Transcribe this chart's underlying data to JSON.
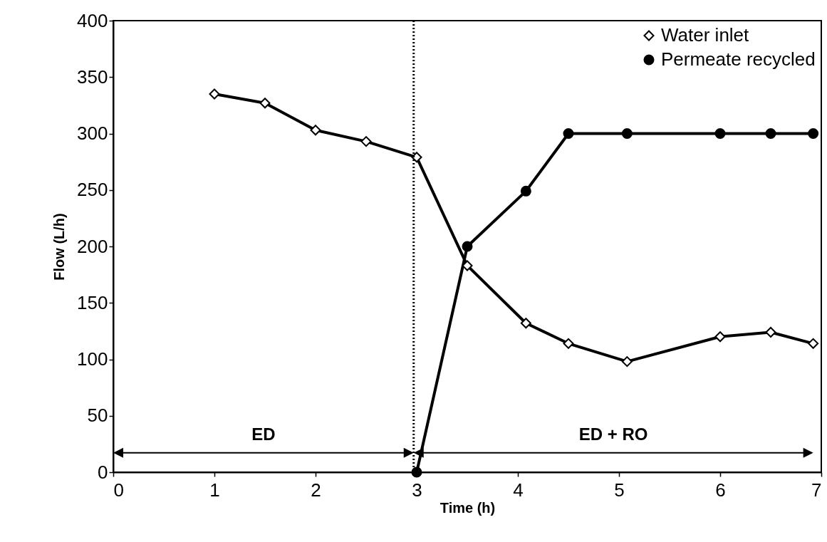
{
  "chart_data": {
    "type": "line",
    "xlabel": "Time (h)",
    "ylabel": "Flow (L/h)",
    "xlim": [
      0,
      7
    ],
    "xticks": [
      0,
      1,
      2,
      3,
      4,
      5,
      6,
      7
    ],
    "ylim": [
      0,
      400
    ],
    "yticks": [
      0,
      50,
      100,
      150,
      200,
      250,
      300,
      350,
      400
    ],
    "grid": false,
    "legend": "top right",
    "line_style": "solid",
    "series": [
      {
        "name": "Water inlet",
        "color": "#000000",
        "marker": "diamond",
        "x": [
          1,
          1.5,
          2,
          2.5,
          3,
          3.5,
          4.08,
          4.5,
          5.08,
          6,
          6.5,
          6.92
        ],
        "values": [
          335,
          327,
          303,
          293,
          279,
          183,
          132,
          114,
          98,
          120,
          124,
          114
        ]
      },
      {
        "name": "Permeate recycled",
        "color": "#000000",
        "marker": "circle",
        "x": [
          3,
          3.5,
          4.08,
          4.5,
          5.08,
          6,
          6.5,
          6.92
        ],
        "values": [
          0,
          200,
          249,
          300,
          300,
          300,
          300,
          300
        ]
      }
    ],
    "ref_lines": [
      {
        "axis": "x",
        "value": 2.97,
        "line_style": "dotted",
        "color": "#000000"
      }
    ],
    "annotations": [
      "ED",
      "ED + RO"
    ]
  }
}
